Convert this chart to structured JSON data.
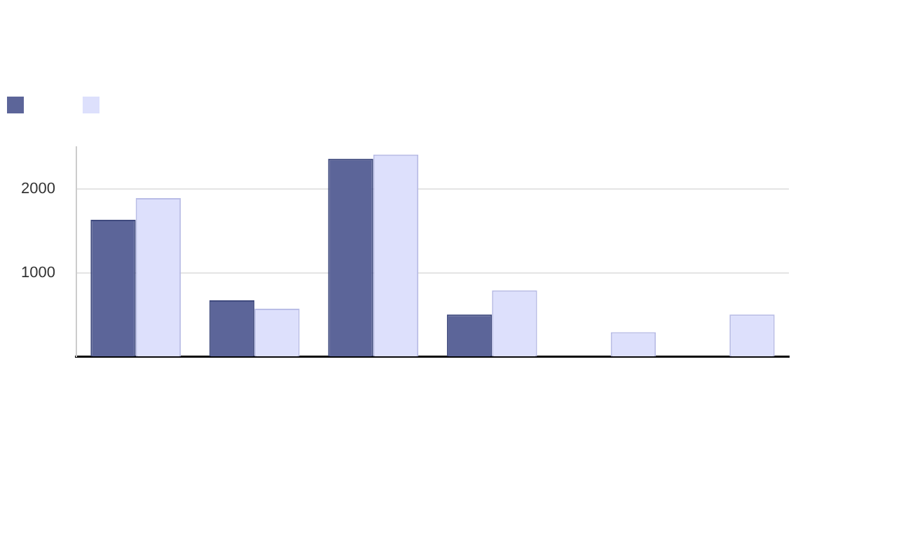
{
  "chart_data": {
    "type": "bar",
    "categories": [
      null,
      null,
      null,
      null,
      null,
      null
    ],
    "series": [
      {
        "color": "#5c6599",
        "values": [
          1630,
          670,
          2360,
          500,
          null,
          null
        ]
      },
      {
        "color": "#dde0fc",
        "values": [
          1890,
          570,
          2410,
          790,
          290,
          500
        ]
      }
    ],
    "ylim": [
      0,
      2500
    ],
    "yticks": [
      1000,
      2000
    ],
    "grid": "y"
  }
}
